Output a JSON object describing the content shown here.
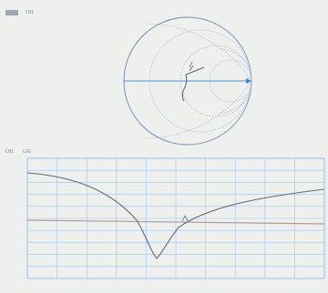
{
  "header": {
    "channel_labels": [
      "CH1",
      ""
    ],
    "readouts": [
      "",
      "",
      ""
    ],
    "date": "",
    "time": ""
  },
  "smith_side_labels": [
    "",
    "",
    "",
    "",
    ""
  ],
  "trace_header": {
    "channel": "CH1",
    "format": "LOG",
    "scale": "",
    "reference": "",
    "marker": "",
    "marker_freq": ""
  },
  "plot_side_labels": [
    "",
    "",
    ""
  ],
  "footer": {
    "start": "",
    "stop": ""
  }
}
